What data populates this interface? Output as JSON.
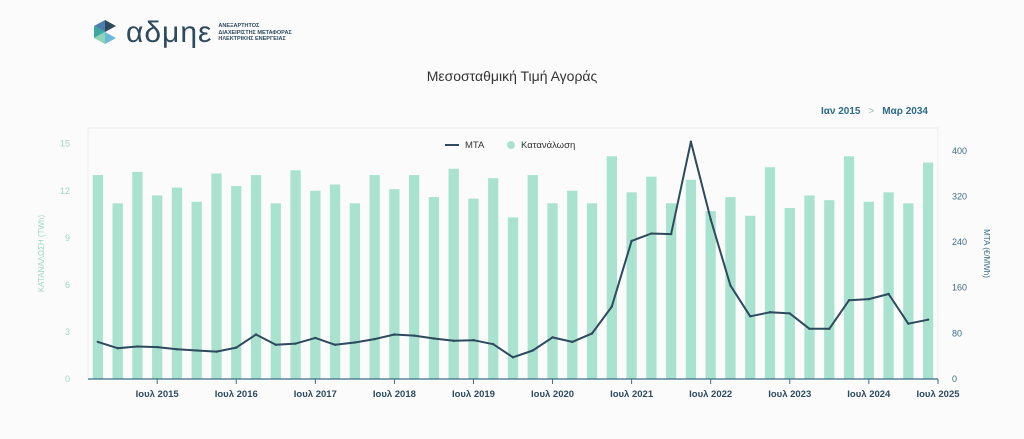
{
  "logo": {
    "name": "αδμηε",
    "subtitle": [
      "ΑΝΕΞΑΡΤΗΤΟΣ",
      "ΔΙΑΧΕΙΡΙΣΤΗΣ ΜΕΤΑΦΟΡΑΣ",
      "ΗΛΕΚΤΡΙΚΗΣ ΕΝΕΡΓΕΙΑΣ"
    ]
  },
  "range": {
    "from": "Ιαν 2015",
    "separator": ">",
    "to": "Μαρ 2034"
  },
  "colors": {
    "bar": "#a9e3cf",
    "line": "#2d4a5e",
    "axis": "#3a6f85",
    "accent": "#2c6a86"
  },
  "chart_data": {
    "type": "bar",
    "title": "Μεσοσταθμική Τιμή Αγοράς",
    "legend": [
      "ΜΤΑ",
      "Κατανάλωση"
    ],
    "legend_position": "top-center",
    "ylabel_left": "ΚΑΤΑΝΑΛΩΣΗ (TWh)",
    "ylabel_right": "ΜΤΑ (€/MWh)",
    "ylim_left": [
      0,
      16
    ],
    "ylim_right": [
      0,
      440
    ],
    "yticks_left": [
      0,
      3,
      6,
      9,
      12,
      15
    ],
    "yticks_right": [
      0,
      80,
      160,
      240,
      320,
      400
    ],
    "x_labels": [
      "Ιουλ 2015",
      "Ιουλ 2016",
      "Ιουλ 2017",
      "Ιουλ 2018",
      "Ιουλ 2019",
      "Ιουλ 2020",
      "Ιουλ 2021",
      "Ιουλ 2022",
      "Ιουλ 2023",
      "Ιουλ 2024",
      "Ιουλ 2025"
    ],
    "series": [
      {
        "name": "Κατανάλωση",
        "axis": "left",
        "kind": "bar",
        "values": [
          13.0,
          11.2,
          13.2,
          11.7,
          12.2,
          11.3,
          13.1,
          12.3,
          13.0,
          11.2,
          13.3,
          12.0,
          12.4,
          11.2,
          13.0,
          12.1,
          13.0,
          11.6,
          13.4,
          11.5,
          12.8,
          10.3,
          13.0,
          11.2,
          12.0,
          11.2,
          14.2,
          11.9,
          12.9,
          11.2,
          12.7,
          10.7,
          11.6,
          10.4,
          13.5,
          10.9,
          11.7,
          11.4,
          14.2,
          11.3,
          11.9,
          11.2,
          13.8
        ]
      },
      {
        "name": "ΜΤΑ",
        "axis": "right",
        "kind": "line",
        "values": [
          65,
          54,
          57,
          56,
          52,
          50,
          48,
          55,
          78,
          60,
          62,
          72,
          60,
          64,
          70,
          78,
          76,
          71,
          67,
          68,
          61,
          38,
          50,
          73,
          65,
          80,
          127,
          242,
          255,
          254,
          416,
          280,
          164,
          110,
          117,
          115,
          88,
          88,
          138,
          140,
          149,
          97,
          104
        ]
      }
    ]
  }
}
